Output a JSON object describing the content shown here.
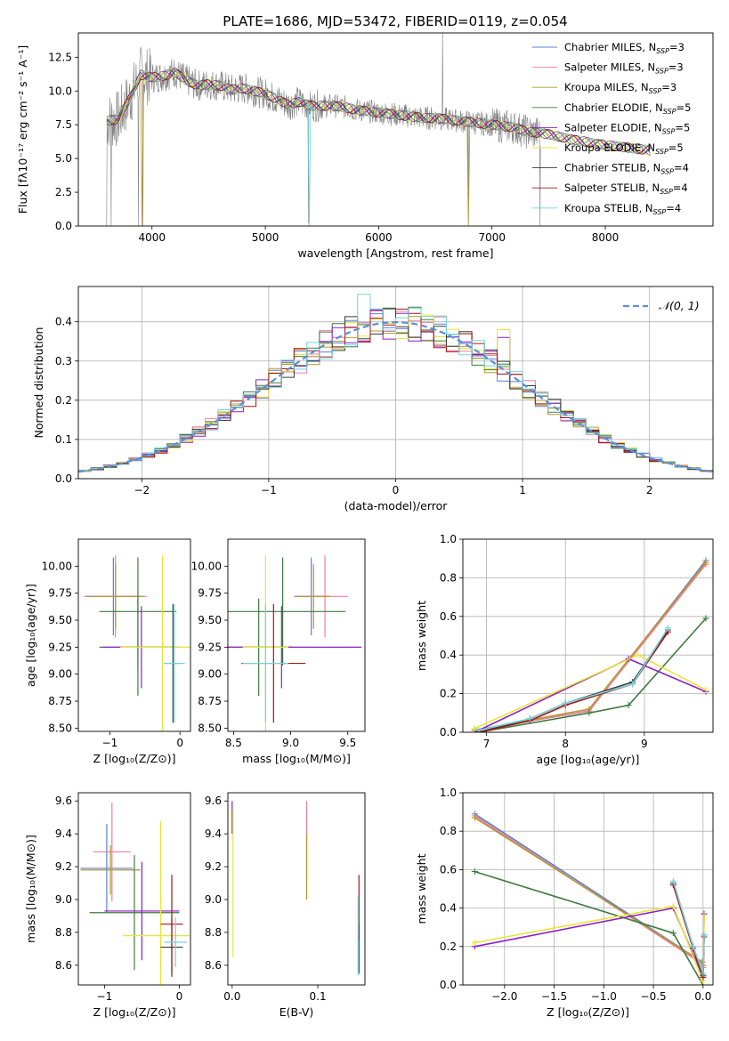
{
  "title": "PLATE=1686, MJD=53472, FIBERID=0119, z=0.054",
  "colors": {
    "Chabrier MILES": "#5b7fd4",
    "Salpeter MILES": "#ef7f9e",
    "Kroupa MILES": "#b8962a",
    "Chabrier ELODIE": "#3f7a3f",
    "Salpeter ELODIE": "#8e1fc8",
    "Kroupa ELODIE": "#e7e635",
    "Chabrier STELIB": "#3a3a3a",
    "Salpeter STELIB": "#a81414",
    "Kroupa STELIB": "#72d3dc",
    "data": "#808080"
  },
  "chart_data": [
    {
      "id": "spectrum",
      "type": "line",
      "xlabel": "wavelength [Angstrom, rest frame]",
      "ylabel": "Flux [fλ10⁻¹⁷ erg cm⁻² s⁻¹ A⁻¹]",
      "xlim": [
        3350,
        8950
      ],
      "ylim": [
        0,
        14.3
      ],
      "xticks": [
        4000,
        5000,
        6000,
        7000,
        8000
      ],
      "yticks": [
        "0.0",
        "2.5",
        "5.0",
        "7.5",
        "10.0",
        "12.5"
      ],
      "continuum": [
        [
          3600,
          7.8
        ],
        [
          3700,
          7.9
        ],
        [
          3800,
          9.4
        ],
        [
          3900,
          11.2
        ],
        [
          4000,
          11.0
        ],
        [
          4100,
          11.1
        ],
        [
          4200,
          11.4
        ],
        [
          4300,
          10.8
        ],
        [
          4400,
          10.4
        ],
        [
          4500,
          10.5
        ],
        [
          4600,
          10.4
        ],
        [
          4700,
          10.1
        ],
        [
          4800,
          10.2
        ],
        [
          4900,
          10.0
        ],
        [
          5000,
          9.8
        ],
        [
          5100,
          9.4
        ],
        [
          5200,
          9.0
        ],
        [
          5300,
          9.2
        ],
        [
          5400,
          8.9
        ],
        [
          5500,
          8.9
        ],
        [
          5600,
          8.9
        ],
        [
          5700,
          8.8
        ],
        [
          5800,
          8.6
        ],
        [
          5900,
          8.5
        ],
        [
          6000,
          8.4
        ],
        [
          6100,
          8.3
        ],
        [
          6200,
          8.2
        ],
        [
          6300,
          8.1
        ],
        [
          6400,
          8.0
        ],
        [
          6500,
          8.0
        ],
        [
          6600,
          7.9
        ],
        [
          6700,
          7.8
        ],
        [
          6800,
          7.7
        ],
        [
          6900,
          7.6
        ],
        [
          7000,
          7.5
        ],
        [
          7100,
          7.4
        ],
        [
          7200,
          7.3
        ],
        [
          7300,
          7.0
        ],
        [
          7400,
          6.9
        ],
        [
          7500,
          6.8
        ],
        [
          7600,
          6.6
        ],
        [
          7700,
          6.4
        ],
        [
          7800,
          6.3
        ],
        [
          7900,
          6.1
        ],
        [
          8000,
          6.0
        ],
        [
          8100,
          5.9
        ],
        [
          8200,
          5.8
        ],
        [
          8300,
          5.7
        ],
        [
          8400,
          5.6
        ]
      ],
      "legend": [
        {
          "name": "Chabrier MILES",
          "label": "Chabrier MILES, N",
          "sub": "SSP",
          "suffix": "=3"
        },
        {
          "name": "Salpeter MILES",
          "label": "Salpeter MILES, N",
          "sub": "SSP",
          "suffix": "=3"
        },
        {
          "name": "Kroupa MILES",
          "label": "Kroupa MILES, N",
          "sub": "SSP",
          "suffix": "=3"
        },
        {
          "name": "Chabrier ELODIE",
          "label": "Chabrier ELODIE, N",
          "sub": "SSP",
          "suffix": "=5"
        },
        {
          "name": "Salpeter ELODIE",
          "label": "Salpeter ELODIE, N",
          "sub": "SSP",
          "suffix": "=5"
        },
        {
          "name": "Kroupa ELODIE",
          "label": "Kroupa ELODIE, N",
          "sub": "SSP",
          "suffix": "=5"
        },
        {
          "name": "Chabrier STELIB",
          "label": "Chabrier STELIB, N",
          "sub": "SSP",
          "suffix": "=4"
        },
        {
          "name": "Salpeter STELIB",
          "label": "Salpeter STELIB, N",
          "sub": "SSP",
          "suffix": "=4"
        },
        {
          "name": "Kroupa STELIB",
          "label": "Kroupa STELIB, N",
          "sub": "SSP",
          "suffix": "=4"
        }
      ]
    },
    {
      "id": "residuals",
      "type": "histogram",
      "xlabel": "(data-model)/error",
      "ylabel": "Normed distribution",
      "xlim": [
        -2.5,
        2.5
      ],
      "ylim": [
        0,
        0.49
      ],
      "xticks": [
        "−2",
        "−1",
        "0",
        "1",
        "2"
      ],
      "yticks": [
        "0.0",
        "0.1",
        "0.2",
        "0.3",
        "0.4"
      ],
      "grid": true,
      "legend": "𝒩(0, 1)",
      "gaussian": {
        "mu": 0,
        "sigma": 1
      }
    },
    {
      "id": "age-Z",
      "type": "errorbar",
      "xlabel": "Z [log₁₀(Z/Z⊙)]",
      "ylabel": "age  [log₁₀(age/yr)]",
      "xlim": [
        -1.45,
        0.15
      ],
      "ylim": [
        8.47,
        10.25
      ],
      "xticks": [
        "−1",
        "0"
      ],
      "yticks": [
        "8.50",
        "8.75",
        "9.00",
        "9.25",
        "9.50",
        "9.75",
        "10.00"
      ],
      "points": [
        {
          "series": "Chabrier MILES",
          "x": -0.95,
          "y": 9.72,
          "xerr": 0.4,
          "yerr": 0.36
        },
        {
          "series": "Salpeter MILES",
          "x": -0.92,
          "y": 9.72,
          "xerr": 0.45,
          "yerr": 0.38
        },
        {
          "series": "Kroupa MILES",
          "x": -0.92,
          "y": 9.72,
          "xerr": 0.4,
          "yerr": 0.3
        },
        {
          "series": "Chabrier ELODIE",
          "x": -0.6,
          "y": 9.58,
          "xerr": 0.55,
          "yerr": 0.5
        },
        {
          "series": "Chabrier ELODIE",
          "x": -0.6,
          "y": 9.25,
          "xerr": 0.55,
          "yerr": 0.45
        },
        {
          "series": "Salpeter ELODIE",
          "x": -0.55,
          "y": 9.25,
          "xerr": 0.55,
          "yerr": 0.38
        },
        {
          "series": "Kroupa ELODIE",
          "x": -0.25,
          "y": 9.25,
          "xerr": 0.6,
          "yerr": 0.85
        },
        {
          "series": "Chabrier STELIB",
          "x": -0.1,
          "y": 9.1,
          "xerr": 0.1,
          "yerr": 0.55
        },
        {
          "series": "Kroupa STELIB",
          "x": -0.08,
          "y": 9.1,
          "xerr": 0.15,
          "yerr": 0.55
        }
      ]
    },
    {
      "id": "age-mass",
      "type": "errorbar",
      "xlabel": "mass [log₁₀(M/M⊙)]",
      "ylabel": "",
      "xlim": [
        8.45,
        9.65
      ],
      "ylim": [
        8.47,
        10.25
      ],
      "xticks": [
        "8.5",
        "9.0",
        "9.5"
      ],
      "yticks": [
        "8.50",
        "8.75",
        "9.00",
        "9.25",
        "9.50",
        "9.75",
        "10.00"
      ],
      "points": [
        {
          "series": "Chabrier MILES",
          "x": 9.18,
          "y": 9.72,
          "xerr": 0.15,
          "yerr": 0.36
        },
        {
          "series": "Salpeter MILES",
          "x": 9.3,
          "y": 9.72,
          "xerr": 0.2,
          "yerr": 0.38
        },
        {
          "series": "Kroupa MILES",
          "x": 9.2,
          "y": 9.72,
          "xerr": 0.15,
          "yerr": 0.3
        },
        {
          "series": "Chabrier ELODIE",
          "x": 8.93,
          "y": 9.58,
          "xerr": 0.55,
          "yerr": 0.5
        },
        {
          "series": "Chabrier ELODIE",
          "x": 8.72,
          "y": 9.25,
          "xerr": 0.3,
          "yerr": 0.45
        },
        {
          "series": "Salpeter ELODIE",
          "x": 8.92,
          "y": 9.25,
          "xerr": 0.7,
          "yerr": 0.38
        },
        {
          "series": "Kroupa ELODIE",
          "x": 8.78,
          "y": 9.25,
          "xerr": 0.2,
          "yerr": 0.85
        },
        {
          "series": "Salpeter STELIB",
          "x": 8.85,
          "y": 9.1,
          "xerr": 0.28,
          "yerr": 0.55
        },
        {
          "series": "Kroupa STELIB",
          "x": 8.78,
          "y": 9.1,
          "xerr": 0.2,
          "yerr": 0.55
        }
      ]
    },
    {
      "id": "weight-age",
      "type": "line",
      "xlabel": "age  [log₁₀(age/yr)]",
      "ylabel": "mass weight",
      "xlim": [
        6.7,
        9.87
      ],
      "ylim": [
        0,
        1.0
      ],
      "xticks": [
        "7",
        "8",
        "9"
      ],
      "yticks": [
        "0.0",
        "0.2",
        "0.4",
        "0.6",
        "0.8",
        "1.0"
      ],
      "grid": true,
      "series": [
        {
          "name": "Chabrier MILES",
          "x": [
            6.85,
            8.3,
            9.78
          ],
          "y": [
            0.01,
            0.11,
            0.89
          ]
        },
        {
          "name": "Salpeter MILES",
          "x": [
            6.85,
            8.3,
            9.78
          ],
          "y": [
            0.01,
            0.11,
            0.87
          ]
        },
        {
          "name": "Kroupa MILES",
          "x": [
            6.85,
            8.3,
            9.78
          ],
          "y": [
            0.01,
            0.12,
            0.88
          ]
        },
        {
          "name": "Chabrier ELODIE",
          "x": [
            6.9,
            8.3,
            8.8,
            9.78
          ],
          "y": [
            0.0,
            0.1,
            0.14,
            0.59
          ]
        },
        {
          "name": "Salpeter ELODIE",
          "x": [
            6.85,
            8.8,
            9.78
          ],
          "y": [
            0.0,
            0.38,
            0.21
          ]
        },
        {
          "name": "Kroupa ELODIE",
          "x": [
            6.85,
            8.92,
            9.78
          ],
          "y": [
            0.02,
            0.4,
            0.22
          ]
        },
        {
          "name": "Chabrier STELIB",
          "x": [
            6.9,
            7.55,
            8.0,
            8.85,
            9.3
          ],
          "y": [
            0.0,
            0.07,
            0.15,
            0.26,
            0.53
          ]
        },
        {
          "name": "Salpeter STELIB",
          "x": [
            6.9,
            7.55,
            8.0,
            8.85,
            9.3
          ],
          "y": [
            0.0,
            0.06,
            0.14,
            0.25,
            0.52
          ]
        },
        {
          "name": "Kroupa STELIB",
          "x": [
            6.9,
            7.55,
            8.0,
            8.85,
            9.3
          ],
          "y": [
            0.01,
            0.07,
            0.15,
            0.25,
            0.54
          ]
        }
      ]
    },
    {
      "id": "mass-Z",
      "type": "errorbar",
      "xlabel": "Z [log₁₀(Z/Z⊙)]",
      "ylabel": "mass [log₁₀(M/M⊙)]",
      "xlim": [
        -1.35,
        0.15
      ],
      "ylim": [
        8.48,
        9.65
      ],
      "xticks": [
        "−1",
        "0"
      ],
      "yticks": [
        "8.6",
        "8.8",
        "9.0",
        "9.2",
        "9.4",
        "9.6"
      ],
      "points": [
        {
          "series": "Chabrier MILES",
          "x": -0.97,
          "y": 9.19,
          "xerr": 0.35,
          "yerr": 0.27
        },
        {
          "series": "Salpeter MILES",
          "x": -0.9,
          "y": 9.29,
          "xerr": 0.25,
          "yerr": 0.3
        },
        {
          "series": "Kroupa MILES",
          "x": -0.92,
          "y": 9.18,
          "xerr": 0.4,
          "yerr": 0.15
        },
        {
          "series": "Chabrier ELODIE",
          "x": -0.6,
          "y": 8.92,
          "xerr": 0.6,
          "yerr": 0.35
        },
        {
          "series": "Salpeter ELODIE",
          "x": -0.5,
          "y": 8.93,
          "xerr": 0.5,
          "yerr": 0.3
        },
        {
          "series": "Kroupa ELODIE",
          "x": -0.25,
          "y": 8.78,
          "xerr": 0.5,
          "yerr": 0.7
        },
        {
          "series": "Chabrier STELIB",
          "x": -0.1,
          "y": 8.71,
          "xerr": 0.15,
          "yerr": 0.18
        },
        {
          "series": "Salpeter STELIB",
          "x": -0.1,
          "y": 8.85,
          "xerr": 0.15,
          "yerr": 0.3
        },
        {
          "series": "Kroupa STELIB",
          "x": -0.05,
          "y": 8.74,
          "xerr": 0.15,
          "yerr": 0.15
        }
      ]
    },
    {
      "id": "mass-ebv",
      "type": "errorbar",
      "xlabel": "E(B-V)",
      "ylabel": "",
      "xlim": [
        -0.005,
        0.155
      ],
      "ylim": [
        8.48,
        9.65
      ],
      "xticks": [
        "0.0",
        "0.1"
      ],
      "yticks": [
        "8.6",
        "8.8",
        "9.0",
        "9.2",
        "9.4",
        "9.6"
      ],
      "points": [
        {
          "series": "Salpeter ELODIE",
          "x": 0.0,
          "y": 9.5,
          "yerr": 0.1
        },
        {
          "series": "Kroupa ELODIE",
          "x": 0.001,
          "y": 9.1,
          "yerr": 0.45
        },
        {
          "series": "Salpeter MILES",
          "x": 0.087,
          "y": 9.35,
          "yerr": 0.25
        },
        {
          "series": "Kroupa MILES",
          "x": 0.087,
          "y": 9.2,
          "yerr": 0.2
        },
        {
          "series": "Chabrier STELIB",
          "x": 0.148,
          "y": 8.7,
          "yerr": 0.15
        },
        {
          "series": "Salpeter STELIB",
          "x": 0.148,
          "y": 8.95,
          "yerr": 0.2
        },
        {
          "series": "Kroupa STELIB",
          "x": 0.147,
          "y": 8.78,
          "yerr": 0.24
        }
      ]
    },
    {
      "id": "weight-Z",
      "type": "line",
      "xlabel": "Z [log₁₀(Z/Z⊙)]",
      "ylabel": "mass weight",
      "xlim": [
        -2.42,
        0.1
      ],
      "ylim": [
        0,
        1.0
      ],
      "xticks": [
        "−2.0",
        "−1.5",
        "−1.0",
        "−0.5",
        "0.0"
      ],
      "yticks": [
        "0.0",
        "0.2",
        "0.4",
        "0.6",
        "0.8",
        "1.0"
      ],
      "grid": true,
      "series": [
        {
          "name": "Chabrier MILES",
          "x": [
            -2.3,
            -0.01,
            0.0
          ],
          "y": [
            0.89,
            0.12,
            0.1
          ]
        },
        {
          "name": "Salpeter MILES",
          "x": [
            -2.3,
            -0.01,
            0.0
          ],
          "y": [
            0.88,
            0.11,
            0.09
          ]
        },
        {
          "name": "Kroupa MILES",
          "x": [
            -2.3,
            -0.01,
            0.0
          ],
          "y": [
            0.87,
            0.12,
            0.1
          ]
        },
        {
          "name": "Chabrier ELODIE",
          "x": [
            -2.3,
            -0.3,
            0.0
          ],
          "y": [
            0.59,
            0.27,
            0.0
          ]
        },
        {
          "name": "Salpeter ELODIE",
          "x": [
            -2.3,
            -0.3,
            0.0,
            0.01
          ],
          "y": [
            0.2,
            0.4,
            0.04,
            0.37
          ]
        },
        {
          "name": "Kroupa ELODIE",
          "x": [
            -2.3,
            -0.3,
            0.0,
            0.01
          ],
          "y": [
            0.22,
            0.41,
            0.02,
            0.36
          ]
        },
        {
          "name": "Chabrier STELIB",
          "x": [
            -0.3,
            -0.1,
            0.0,
            0.01
          ],
          "y": [
            0.53,
            0.2,
            0.05,
            0.26
          ]
        },
        {
          "name": "Salpeter STELIB",
          "x": [
            -0.3,
            -0.1,
            0.0,
            0.01
          ],
          "y": [
            0.52,
            0.19,
            0.04,
            0.25
          ]
        },
        {
          "name": "Kroupa STELIB",
          "x": [
            -0.3,
            -0.1,
            0.0,
            0.01
          ],
          "y": [
            0.54,
            0.2,
            0.06,
            0.26
          ]
        }
      ]
    }
  ]
}
